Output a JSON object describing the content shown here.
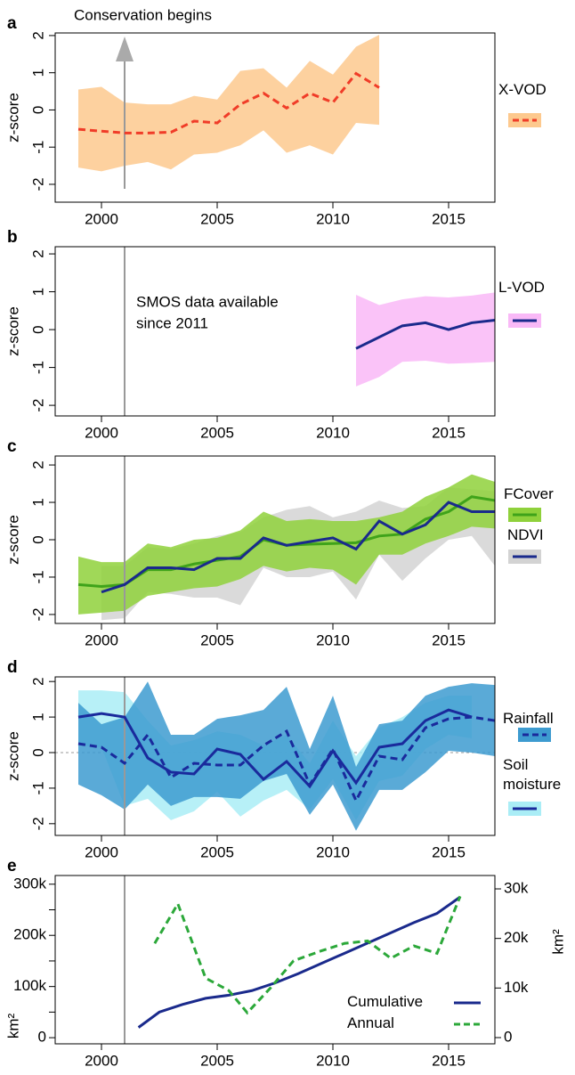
{
  "chart_data": [
    {
      "type": "line",
      "label": "a",
      "ylabel": "z-score",
      "annotation": "Conservation begins",
      "arrow": true,
      "marker_x": 2001,
      "xlim": [
        1998,
        2017
      ],
      "xticks": [
        2000,
        2005,
        2010,
        2015
      ],
      "ylim": [
        -2.48,
        2.07
      ],
      "yticks": [
        -2,
        -1,
        0,
        1,
        2
      ],
      "series": [
        {
          "name": "X-VOD",
          "color": "#f03c28",
          "band_color": "#fdc98e",
          "dash": true,
          "x": [
            1999,
            2000,
            2001,
            2002,
            2003,
            2004,
            2005,
            2006,
            2007,
            2008,
            2009,
            2010,
            2011,
            2012
          ],
          "values": [
            -0.52,
            -0.57,
            -0.62,
            -0.62,
            -0.6,
            -0.3,
            -0.35,
            0.15,
            0.45,
            0.05,
            0.45,
            0.2,
            0.98,
            0.6
          ],
          "upper": [
            0.55,
            0.62,
            0.2,
            0.15,
            0.15,
            0.38,
            0.28,
            1.05,
            1.12,
            0.6,
            1.32,
            0.95,
            1.7,
            2.02
          ],
          "lower": [
            -1.55,
            -1.65,
            -1.5,
            -1.4,
            -1.6,
            -1.2,
            -1.15,
            -0.95,
            -0.55,
            -1.15,
            -0.95,
            -1.2,
            -0.35,
            -0.4
          ]
        }
      ]
    },
    {
      "type": "line",
      "label": "b",
      "ylabel": "z-score",
      "annotation_lines": [
        "SMOS data available",
        "since 2011"
      ],
      "marker_x": 2001,
      "xlim": [
        1998,
        2017
      ],
      "xticks": [
        2000,
        2005,
        2010,
        2015
      ],
      "ylim": [
        -2.28,
        2.19
      ],
      "yticks": [
        -2,
        -1,
        0,
        1,
        2
      ],
      "series": [
        {
          "name": "L-VOD",
          "color": "#1a2a8c",
          "band_color": "#f9b9f7",
          "dash": false,
          "x": [
            2011,
            2012,
            2013,
            2014,
            2015,
            2016,
            2017
          ],
          "values": [
            -0.5,
            -0.2,
            0.1,
            0.18,
            0.0,
            0.18,
            0.25
          ],
          "upper": [
            0.92,
            0.65,
            0.8,
            0.88,
            0.85,
            0.9,
            0.98
          ],
          "lower": [
            -1.5,
            -1.25,
            -0.85,
            -0.82,
            -0.9,
            -0.88,
            -0.85
          ]
        }
      ]
    },
    {
      "type": "line",
      "label": "c",
      "ylabel": "z-score",
      "marker_x": 2001,
      "xlim": [
        1998,
        2017
      ],
      "xticks": [
        2000,
        2005,
        2010,
        2015
      ],
      "ylim": [
        -2.24,
        2.24
      ],
      "yticks": [
        -2,
        -1,
        0,
        1,
        2
      ],
      "series": [
        {
          "name": "FCover",
          "color": "#3fa31a",
          "band_color": "#8fd13b",
          "dash": false,
          "x": [
            1999,
            2000,
            2001,
            2002,
            2003,
            2004,
            2005,
            2006,
            2007,
            2008,
            2009,
            2010,
            2011,
            2012,
            2013,
            2014,
            2015,
            2016,
            2017
          ],
          "values": [
            -1.2,
            -1.25,
            -1.2,
            -0.8,
            -0.8,
            -0.65,
            -0.55,
            -0.45,
            0.0,
            -0.15,
            -0.12,
            -0.1,
            -0.08,
            0.1,
            0.15,
            0.55,
            0.75,
            1.15,
            1.05
          ],
          "upper": [
            -0.45,
            -0.6,
            -0.6,
            -0.1,
            -0.2,
            0.0,
            0.05,
            0.25,
            0.75,
            0.5,
            0.55,
            0.5,
            0.5,
            0.6,
            0.75,
            1.15,
            1.4,
            1.75,
            1.55
          ],
          "lower": [
            -2.0,
            -1.95,
            -1.9,
            -1.5,
            -1.4,
            -1.3,
            -1.25,
            -1.05,
            -0.7,
            -0.85,
            -0.75,
            -0.8,
            -1.2,
            -0.4,
            -0.4,
            -0.1,
            0.1,
            0.35,
            0.3
          ]
        },
        {
          "name": "NDVI",
          "color": "#1a2a8c",
          "band_color": "#d3d3d3",
          "dash": false,
          "x": [
            2000,
            2001,
            2002,
            2003,
            2004,
            2005,
            2006,
            2007,
            2008,
            2009,
            2010,
            2011,
            2012,
            2013,
            2014,
            2015,
            2016,
            2017
          ],
          "values": [
            -1.4,
            -1.2,
            -0.75,
            -0.75,
            -0.8,
            -0.5,
            -0.5,
            0.05,
            -0.15,
            -0.05,
            0.05,
            -0.25,
            0.5,
            0.15,
            0.4,
            1.0,
            0.75,
            0.75
          ],
          "upper": [
            -0.7,
            -0.7,
            -0.2,
            -0.25,
            -0.1,
            0.1,
            0.2,
            0.6,
            0.8,
            0.9,
            0.6,
            0.75,
            1.05,
            0.85,
            0.9,
            1.4,
            1.35,
            1.3
          ],
          "lower": [
            -2.15,
            -2.1,
            -1.4,
            -1.45,
            -1.55,
            -1.55,
            -1.75,
            -0.75,
            -1.0,
            -1.0,
            -0.85,
            -1.6,
            -0.4,
            -1.1,
            -0.5,
            0.0,
            0.1,
            -0.7
          ]
        }
      ]
    },
    {
      "type": "line",
      "label": "d",
      "ylabel": "z-score",
      "zero_line": true,
      "marker_x": 2001,
      "xlim": [
        1998,
        2017
      ],
      "xticks": [
        2000,
        2005,
        2010,
        2015
      ],
      "ylim": [
        -2.33,
        2.13
      ],
      "yticks": [
        -2,
        -1,
        0,
        1,
        2
      ],
      "series": [
        {
          "name": "Rainfall",
          "color": "#1a2a9c",
          "band_color": "#3d9bd0",
          "dash": true,
          "x": [
            1999,
            2000,
            2001,
            2002,
            2003,
            2004,
            2005,
            2006,
            2007,
            2008,
            2009,
            2010,
            2011,
            2012,
            2013,
            2014,
            2015,
            2016,
            2017
          ],
          "values": [
            0.25,
            0.15,
            -0.3,
            0.5,
            -0.7,
            -0.3,
            -0.35,
            -0.35,
            0.2,
            0.6,
            -0.9,
            0.1,
            -1.35,
            -0.1,
            -0.2,
            0.7,
            0.95,
            1.0,
            0.9
          ],
          "upper": [
            1.4,
            0.8,
            1.0,
            2.0,
            0.5,
            0.5,
            0.95,
            1.05,
            1.2,
            1.85,
            0.1,
            1.6,
            -0.4,
            0.8,
            0.9,
            1.6,
            1.85,
            1.95,
            1.9
          ],
          "lower": [
            -0.9,
            -1.2,
            -1.6,
            -0.9,
            -1.5,
            -1.25,
            -1.25,
            -1.3,
            -0.8,
            -0.6,
            -1.75,
            -0.9,
            -2.2,
            -1.05,
            -1.05,
            -0.55,
            0.05,
            0.0,
            -0.1
          ]
        },
        {
          "name": "Soil moisture",
          "color": "#1a2a9c",
          "band_color": "#aaedf6",
          "dash": false,
          "x": [
            1999,
            2000,
            2001,
            2002,
            2003,
            2004,
            2005,
            2006,
            2007,
            2008,
            2009,
            2010,
            2011,
            2012,
            2013,
            2014,
            2015,
            2016
          ],
          "values": [
            1.0,
            1.1,
            1.0,
            -0.15,
            -0.55,
            -0.6,
            0.1,
            -0.05,
            -0.75,
            -0.25,
            -0.95,
            0.05,
            -0.85,
            0.15,
            0.25,
            0.9,
            1.2,
            1.0
          ],
          "upper": [
            1.75,
            1.75,
            1.7,
            0.9,
            0.2,
            0.35,
            0.6,
            0.5,
            0.2,
            0.5,
            -0.3,
            0.9,
            -0.1,
            0.7,
            1.0,
            1.4,
            1.6,
            1.6
          ],
          "lower": [
            0.2,
            0.15,
            -1.5,
            -1.3,
            -1.9,
            -1.65,
            -1.1,
            -1.8,
            -1.35,
            -1.05,
            -1.6,
            -0.75,
            -1.9,
            -0.8,
            -0.65,
            0.1,
            0.5,
            0.4
          ]
        }
      ]
    },
    {
      "type": "line",
      "label": "e",
      "ylabel": "km²",
      "y2label": "km²",
      "marker_x": 2001,
      "xlim": [
        1998,
        2017
      ],
      "xticks": [
        2000,
        2005,
        2010,
        2015
      ],
      "ylim": [
        -12000,
        317000
      ],
      "yticks": [
        0,
        {
          "value": 100000,
          "label": "100k"
        },
        {
          "value": 200000,
          "label": "200k"
        },
        {
          "value": 300000,
          "label": "300k"
        }
      ],
      "yminorticks": [
        50000,
        150000,
        250000
      ],
      "y2lim": [
        -1260,
        32700
      ],
      "y2ticks": [
        0,
        {
          "value": 10000,
          "label": "10k"
        },
        {
          "value": 20000,
          "label": "20k"
        },
        {
          "value": 30000,
          "label": "30k"
        }
      ],
      "series": [
        {
          "name": "Cumulative",
          "color": "#1a2a8c",
          "dash": false,
          "x": [
            2001.6,
            2002.5,
            2003.5,
            2004.5,
            2005.5,
            2006.5,
            2007.5,
            2008.5,
            2009.5,
            2010.5,
            2011.5,
            2012.5,
            2013.5,
            2014.5,
            2015.5
          ],
          "values": [
            20000,
            50000,
            65000,
            77000,
            83000,
            92000,
            107000,
            125000,
            145000,
            165000,
            185000,
            205000,
            225000,
            243000,
            275000
          ]
        },
        {
          "name": "Annual",
          "color": "#2ca83a",
          "dash": true,
          "axis": "y2",
          "x": [
            2002.3,
            2003.3,
            2004.5,
            2005.5,
            2006.3,
            2007.3,
            2008.3,
            2009.5,
            2010.5,
            2011.5,
            2012.5,
            2013.5,
            2014.5,
            2015.5
          ],
          "values": [
            19000,
            27000,
            12000,
            9500,
            5000,
            10000,
            15500,
            17500,
            19000,
            19500,
            16000,
            18500,
            17000,
            28500
          ]
        }
      ]
    }
  ]
}
